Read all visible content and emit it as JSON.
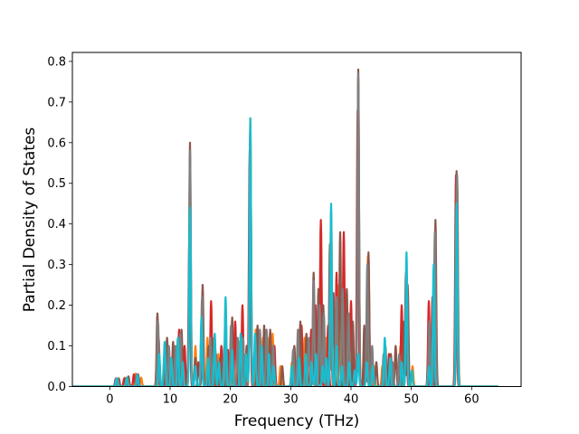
{
  "chart_data": {
    "type": "line",
    "title": "",
    "xlabel": "Frequency (THz)",
    "ylabel": "Partial Density of States",
    "xlim": [
      -6.2,
      68.2
    ],
    "ylim": [
      0,
      0.822
    ],
    "xticks": [
      0,
      10,
      20,
      30,
      40,
      50,
      60
    ],
    "yticks": [
      0.0,
      0.1,
      0.2,
      0.3,
      0.4,
      0.5,
      0.6,
      0.7,
      0.8
    ],
    "xtick_labels": [
      "0",
      "10",
      "20",
      "30",
      "40",
      "50",
      "60"
    ],
    "ytick_labels": [
      "0.0",
      "0.1",
      "0.2",
      "0.3",
      "0.4",
      "0.5",
      "0.6",
      "0.7",
      "0.8"
    ],
    "x_start": -6.2,
    "x_end": 64.4,
    "grid": false,
    "legend": "none",
    "series_colors": [
      "#1f77b4",
      "#ff7f0e",
      "#2ca02c",
      "#d62728",
      "#9467bd",
      "#8c564b",
      "#e377c2",
      "#7f7f7f",
      "#bcbd22",
      "#17becf"
    ],
    "draw_order": [
      "#ff7f0e",
      "#d62728",
      "#8c564b",
      "#7f7f7f",
      "#17becf"
    ],
    "series_peaks": [
      [
        [
          1.2,
          0.02
        ],
        [
          2.5,
          0.022
        ],
        [
          4.3,
          0.032
        ],
        [
          5.2,
          0.022
        ],
        [
          7.9,
          0.12
        ],
        [
          9.0,
          0.06
        ],
        [
          10.3,
          0.05
        ],
        [
          11.3,
          0.12
        ],
        [
          12.2,
          0.09
        ],
        [
          13.3,
          0.44
        ],
        [
          14.2,
          0.1
        ],
        [
          15.2,
          0.12
        ],
        [
          16.2,
          0.12
        ],
        [
          17.2,
          0.1
        ],
        [
          18.0,
          0.08
        ],
        [
          19.2,
          0.2
        ],
        [
          20.4,
          0.12
        ],
        [
          21.5,
          0.11
        ],
        [
          22.3,
          0.08
        ],
        [
          23.3,
          0.66
        ],
        [
          24.2,
          0.14
        ],
        [
          25.4,
          0.12
        ],
        [
          26.2,
          0.12
        ],
        [
          27.0,
          0.13
        ],
        [
          28.3,
          0.05
        ],
        [
          30.2,
          0.06
        ],
        [
          31.3,
          0.08
        ],
        [
          32.3,
          0.12
        ],
        [
          33.7,
          0.1
        ],
        [
          35.0,
          0.4
        ],
        [
          35.8,
          0.12
        ],
        [
          36.7,
          0.43
        ],
        [
          38.0,
          0.25
        ],
        [
          39.2,
          0.12
        ],
        [
          41.2,
          0.76
        ],
        [
          42.2,
          0.1
        ],
        [
          42.8,
          0.32
        ],
        [
          43.8,
          0.05
        ],
        [
          45.2,
          0.05
        ],
        [
          46.5,
          0.06
        ],
        [
          48.2,
          0.1
        ],
        [
          49.2,
          0.24
        ],
        [
          50.2,
          0.05
        ],
        [
          53.0,
          0.12
        ],
        [
          53.8,
          0.29
        ],
        [
          57.6,
          0.51
        ]
      ],
      [
        [
          1.0,
          0.02
        ],
        [
          2.4,
          0.02
        ],
        [
          4.0,
          0.03
        ],
        [
          8.1,
          0.12
        ],
        [
          9.2,
          0.07
        ],
        [
          10.8,
          0.08
        ],
        [
          11.5,
          0.14
        ],
        [
          12.4,
          0.1
        ],
        [
          13.2,
          0.37
        ],
        [
          14.7,
          0.06
        ],
        [
          15.4,
          0.17
        ],
        [
          16.8,
          0.21
        ],
        [
          17.6,
          0.08
        ],
        [
          18.5,
          0.1
        ],
        [
          19.6,
          0.09
        ],
        [
          20.8,
          0.16
        ],
        [
          22.0,
          0.2
        ],
        [
          23.2,
          0.58
        ],
        [
          24.7,
          0.09
        ],
        [
          25.9,
          0.12
        ],
        [
          27.3,
          0.1
        ],
        [
          30.8,
          0.06
        ],
        [
          31.8,
          0.15
        ],
        [
          33.4,
          0.14
        ],
        [
          34.1,
          0.2
        ],
        [
          35.0,
          0.41
        ],
        [
          36.2,
          0.15
        ],
        [
          37.6,
          0.28
        ],
        [
          38.8,
          0.38
        ],
        [
          40.0,
          0.21
        ],
        [
          41.1,
          0.68
        ],
        [
          42.5,
          0.1
        ],
        [
          42.9,
          0.3
        ],
        [
          45.6,
          0.06
        ],
        [
          46.3,
          0.08
        ],
        [
          48.4,
          0.2
        ],
        [
          49.1,
          0.28
        ],
        [
          52.9,
          0.21
        ],
        [
          53.5,
          0.22
        ],
        [
          57.4,
          0.52
        ]
      ],
      [
        [
          1.5,
          0.02
        ],
        [
          3.1,
          0.025
        ],
        [
          4.7,
          0.03
        ],
        [
          7.9,
          0.18
        ],
        [
          9.5,
          0.12
        ],
        [
          10.5,
          0.11
        ],
        [
          11.9,
          0.14
        ],
        [
          13.3,
          0.6
        ],
        [
          14.2,
          0.07
        ],
        [
          15.4,
          0.25
        ],
        [
          16.4,
          0.1
        ],
        [
          17.3,
          0.12
        ],
        [
          18.3,
          0.07
        ],
        [
          19.4,
          0.08
        ],
        [
          20.3,
          0.17
        ],
        [
          21.8,
          0.13
        ],
        [
          22.7,
          0.1
        ],
        [
          23.3,
          0.64
        ],
        [
          24.5,
          0.15
        ],
        [
          25.6,
          0.15
        ],
        [
          26.6,
          0.14
        ],
        [
          28.6,
          0.05
        ],
        [
          30.6,
          0.1
        ],
        [
          31.6,
          0.16
        ],
        [
          32.6,
          0.13
        ],
        [
          33.8,
          0.28
        ],
        [
          34.6,
          0.24
        ],
        [
          35.4,
          0.2
        ],
        [
          36.5,
          0.35
        ],
        [
          37.1,
          0.23
        ],
        [
          38.2,
          0.38
        ],
        [
          39.3,
          0.24
        ],
        [
          40.3,
          0.16
        ],
        [
          41.2,
          0.78
        ],
        [
          42.2,
          0.15
        ],
        [
          42.9,
          0.33
        ],
        [
          44.2,
          0.06
        ],
        [
          45.7,
          0.1
        ],
        [
          46.6,
          0.08
        ],
        [
          47.4,
          0.1
        ],
        [
          48.8,
          0.16
        ],
        [
          49.4,
          0.25
        ],
        [
          53.2,
          0.1
        ],
        [
          54.0,
          0.41
        ],
        [
          57.5,
          0.53
        ]
      ],
      [
        [
          1.3,
          0.02
        ],
        [
          2.9,
          0.02
        ],
        [
          4.5,
          0.03
        ],
        [
          8.0,
          0.16
        ],
        [
          9.8,
          0.1
        ],
        [
          10.9,
          0.1
        ],
        [
          11.7,
          0.13
        ],
        [
          13.3,
          0.58
        ],
        [
          15.3,
          0.22
        ],
        [
          16.7,
          0.12
        ],
        [
          17.5,
          0.09
        ],
        [
          19.0,
          0.1
        ],
        [
          20.1,
          0.15
        ],
        [
          21.2,
          0.12
        ],
        [
          22.1,
          0.12
        ],
        [
          23.3,
          0.6
        ],
        [
          24.9,
          0.14
        ],
        [
          26.0,
          0.14
        ],
        [
          27.1,
          0.1
        ],
        [
          30.4,
          0.09
        ],
        [
          31.2,
          0.14
        ],
        [
          33.0,
          0.12
        ],
        [
          33.8,
          0.26
        ],
        [
          34.8,
          0.2
        ],
        [
          35.5,
          0.18
        ],
        [
          36.6,
          0.33
        ],
        [
          37.6,
          0.22
        ],
        [
          38.6,
          0.24
        ],
        [
          39.6,
          0.18
        ],
        [
          41.2,
          0.77
        ],
        [
          42.7,
          0.3
        ],
        [
          43.5,
          0.1
        ],
        [
          45.4,
          0.08
        ],
        [
          46.9,
          0.06
        ],
        [
          48.0,
          0.08
        ],
        [
          49.2,
          0.22
        ],
        [
          53.0,
          0.16
        ],
        [
          53.9,
          0.38
        ],
        [
          57.6,
          0.52
        ]
      ],
      [
        [
          1.1,
          0.02
        ],
        [
          2.8,
          0.022
        ],
        [
          4.6,
          0.028
        ],
        [
          8.2,
          0.08
        ],
        [
          9.1,
          0.11
        ],
        [
          10.2,
          0.07
        ],
        [
          11.3,
          0.12
        ],
        [
          12.1,
          0.06
        ],
        [
          13.3,
          0.44
        ],
        [
          14.2,
          0.05
        ],
        [
          15.2,
          0.17
        ],
        [
          16.3,
          0.07
        ],
        [
          17.4,
          0.13
        ],
        [
          18.1,
          0.06
        ],
        [
          19.2,
          0.22
        ],
        [
          20.3,
          0.09
        ],
        [
          21.7,
          0.13
        ],
        [
          22.6,
          0.08
        ],
        [
          23.3,
          0.66
        ],
        [
          24.1,
          0.13
        ],
        [
          25.2,
          0.1
        ],
        [
          26.4,
          0.08
        ],
        [
          27.2,
          0.05
        ],
        [
          30.2,
          0.05
        ],
        [
          31.4,
          0.07
        ],
        [
          32.5,
          0.08
        ],
        [
          33.5,
          0.06
        ],
        [
          34.2,
          0.08
        ],
        [
          35.3,
          0.05
        ],
        [
          35.9,
          0.07
        ],
        [
          36.7,
          0.45
        ],
        [
          37.6,
          0.1
        ],
        [
          38.5,
          0.05
        ],
        [
          39.7,
          0.06
        ],
        [
          40.6,
          0.04
        ],
        [
          41.2,
          0.08
        ],
        [
          42.6,
          0.06
        ],
        [
          43.6,
          0.05
        ],
        [
          45.6,
          0.12
        ],
        [
          46.5,
          0.07
        ],
        [
          48.4,
          0.06
        ],
        [
          49.2,
          0.33
        ],
        [
          50.1,
          0.04
        ],
        [
          52.9,
          0.05
        ],
        [
          53.7,
          0.3
        ],
        [
          57.5,
          0.45
        ]
      ]
    ]
  }
}
